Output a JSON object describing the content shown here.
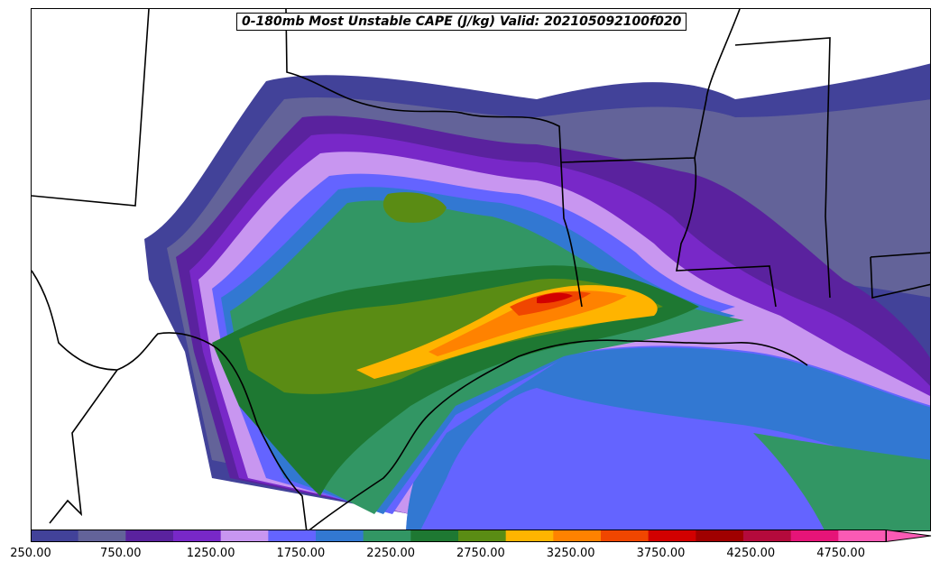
{
  "title": "0-180mb Most Unstable CAPE (J/kg) Valid: 202105092100f020",
  "colorbar": {
    "tick_labels": [
      "250.00",
      "750.00",
      "1250.00",
      "1750.00",
      "2250.00",
      "2750.00",
      "3250.00",
      "3750.00",
      "4250.00",
      "4750.00"
    ],
    "colors": [
      "#424299",
      "#636399",
      "#5a229e",
      "#7828c8",
      "#c896f0",
      "#6464ff",
      "#3278d2",
      "#329664",
      "#1e7832",
      "#5a8c14",
      "#ffb400",
      "#ff8200",
      "#f04600",
      "#d20000",
      "#a00000",
      "#b40a3c",
      "#e61478",
      "#fa5ab4"
    ],
    "extend": "max",
    "min": 250,
    "max": 4750,
    "step": 250
  },
  "layer_colors": {
    "ocean_base": "#6464ff",
    "land_base": "#ffffff",
    "boundary": "#000000"
  }
}
